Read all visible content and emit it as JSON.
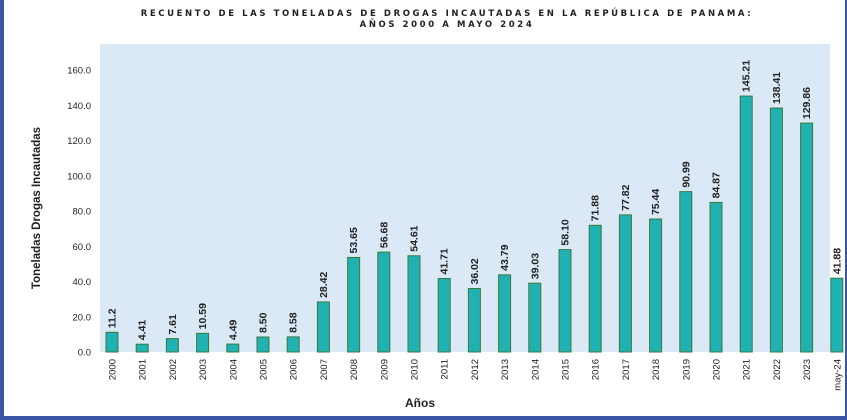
{
  "chart_data": {
    "type": "bar",
    "title": "RECUENTO DE LAS TONELADAS DE DROGAS INCAUTADAS EN LA REPÚBLICA DE PANAMA:",
    "subtitle": "AÑOS 2000 A MAYO 2024",
    "xlabel": "Años",
    "ylabel": "Toneladas Drogas Incautadas",
    "categories": [
      "2000",
      "2001",
      "2002",
      "2003",
      "2004",
      "2005",
      "2006",
      "2007",
      "2008",
      "2009",
      "2010",
      "2011",
      "2012",
      "2013",
      "2014",
      "2015",
      "2016",
      "2017",
      "2018",
      "2019",
      "2020",
      "2021",
      "2022",
      "2023",
      "may-24"
    ],
    "values": [
      11.2,
      4.41,
      7.61,
      10.59,
      4.49,
      8.5,
      8.58,
      28.42,
      53.65,
      56.68,
      54.61,
      41.71,
      36.02,
      43.79,
      39.03,
      58.1,
      71.88,
      77.82,
      75.44,
      90.99,
      84.87,
      145.21,
      138.41,
      129.86,
      41.88
    ],
    "data_labels": [
      "11.2",
      "4.41",
      "7.61",
      "10.59",
      "4.49",
      "8.50",
      "8.58",
      "28.42",
      "53.65",
      "56.68",
      "54.61",
      "41.71",
      "36.02",
      "43.79",
      "39.03",
      "58.10",
      "71.88",
      "77.82",
      "75.44",
      "90.99",
      "84.87",
      "145.21",
      "138.41",
      "129.86",
      "41.88"
    ],
    "yticks": [
      "0.0",
      "20.0",
      "40.0",
      "60.0",
      "80.0",
      "100.0",
      "120.0",
      "140.0",
      "160.0"
    ],
    "ylim": [
      0,
      160
    ],
    "grid": false,
    "legend": "none",
    "colors": {
      "bar_fill": "#20b2b3",
      "bar_stroke": "#3b7a3b",
      "plot_bg": "#dbe8f6",
      "frame": "#3a55a4"
    }
  }
}
